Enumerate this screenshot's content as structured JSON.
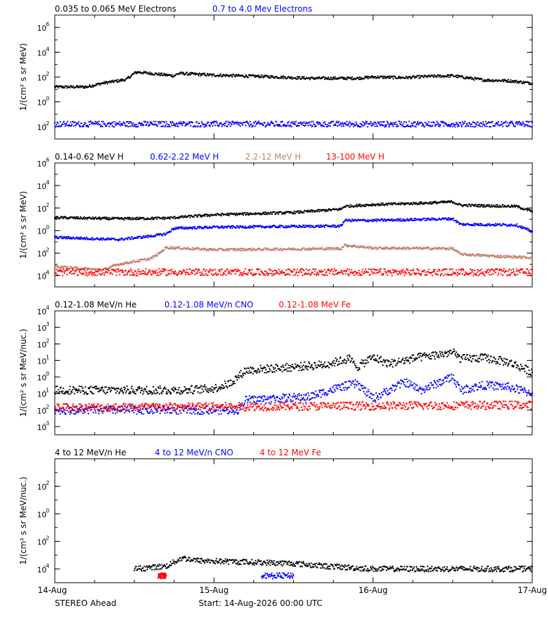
{
  "colors": {
    "black": "#000000",
    "blue": "#0000ff",
    "tan": "#c0806a",
    "red": "#ff0000"
  },
  "footer": {
    "spacecraft": "STEREO Ahead",
    "start": "Start: 14-Aug-2026 00:00 UTC",
    "x_ticks": [
      "14-Aug",
      "15-Aug",
      "16-Aug",
      "17-Aug"
    ]
  },
  "chart_data": [
    {
      "type": "scatter",
      "legend": [
        "0.035 to 0.065 MeV Electrons",
        "0.7 to 4.0 Mev Electrons"
      ],
      "ylabel": "1/(cm² s sr MeV)",
      "ylim_log10": [
        -3,
        7
      ],
      "y_tick_labels": [
        {
          "b": "10",
          "e": "-2",
          "v": -2
        },
        {
          "b": "10",
          "e": "0",
          "v": 0
        },
        {
          "b": "10",
          "e": "2",
          "v": 2
        },
        {
          "b": "10",
          "e": "4",
          "v": 4
        },
        {
          "b": "10",
          "e": "6",
          "v": 6
        }
      ],
      "x_unit": "days since 14-Aug 00:00",
      "xlim": [
        0,
        3
      ],
      "series": [
        {
          "name": "0.035 to 0.065 MeV Electrons",
          "color": "#000000",
          "x": [
            0,
            0.2,
            0.3,
            0.45,
            0.5,
            0.52,
            0.75,
            0.78,
            1.0,
            1.3,
            1.6,
            1.9,
            2.0,
            2.2,
            2.35,
            2.5,
            2.7,
            2.85,
            3.0
          ],
          "y": [
            1.2,
            1.2,
            1.5,
            1.8,
            2.3,
            2.4,
            2.1,
            2.3,
            2.15,
            2.05,
            1.9,
            1.9,
            2.0,
            1.95,
            2.05,
            2.1,
            1.75,
            1.7,
            1.5
          ]
        },
        {
          "name": "0.7 to 4.0 Mev Electrons",
          "color": "#0000ff",
          "x": [
            0,
            3
          ],
          "y": [
            -1.8,
            -1.8
          ]
        }
      ]
    },
    {
      "type": "scatter",
      "legend": [
        "0.14-0.62 MeV H",
        "0.62-2.22 MeV H",
        "2.2-12 MeV H",
        "13-100 MeV H"
      ],
      "ylabel": "1/(cm² s sr MeV)",
      "ylim_log10": [
        -5,
        6
      ],
      "y_tick_labels": [
        {
          "b": "10",
          "e": "-4",
          "v": -4
        },
        {
          "b": "10",
          "e": "-2",
          "v": -2
        },
        {
          "b": "10",
          "e": "0",
          "v": 0
        },
        {
          "b": "10",
          "e": "2",
          "v": 2
        },
        {
          "b": "10",
          "e": "4",
          "v": 4
        },
        {
          "b": "10",
          "e": "6",
          "v": 6
        }
      ],
      "x_unit": "days since 14-Aug 00:00",
      "xlim": [
        0,
        3
      ],
      "series": [
        {
          "name": "0.14-0.62 MeV H",
          "color": "#000000",
          "x": [
            0,
            0.4,
            0.7,
            1.0,
            1.5,
            1.8,
            1.82,
            2.0,
            2.35,
            2.5,
            2.55,
            2.9,
            3.0
          ],
          "y": [
            1.15,
            1.05,
            1.1,
            1.4,
            1.6,
            1.9,
            2.15,
            2.3,
            2.45,
            2.55,
            2.25,
            2.15,
            1.7
          ]
        },
        {
          "name": "0.62-2.22 MeV H",
          "color": "#0000ff",
          "x": [
            0,
            0.4,
            0.6,
            0.7,
            0.75,
            1.0,
            1.8,
            1.82,
            2.0,
            2.35,
            2.5,
            2.55,
            2.9,
            3.0
          ],
          "y": [
            -0.6,
            -0.8,
            -0.5,
            -0.3,
            0.2,
            0.3,
            0.4,
            0.9,
            0.9,
            1.0,
            1.05,
            0.55,
            0.5,
            -0.1
          ]
        },
        {
          "name": "2.2-12 MeV H",
          "color": "#c0806a",
          "x": [
            0,
            0.3,
            0.4,
            0.6,
            0.65,
            0.7,
            1.0,
            1.8,
            1.82,
            2.0,
            2.5,
            2.55,
            2.8,
            3.0
          ],
          "y": [
            -3.2,
            -3.5,
            -3.0,
            -2.5,
            -2.1,
            -1.5,
            -1.7,
            -1.6,
            -1.3,
            -1.55,
            -1.6,
            -2.1,
            -2.3,
            -2.4
          ]
        },
        {
          "name": "13-100 MeV H",
          "color": "#ff0000",
          "x": [
            0,
            3
          ],
          "y": [
            -3.7,
            -3.7
          ]
        }
      ]
    },
    {
      "type": "scatter",
      "legend": [
        "0.12-1.08 MeV/n He",
        "0.12-1.08 MeV/n CNO",
        "0.12-1.08 MeV Fe"
      ],
      "ylabel": "1/(cm² s sr MeV/nuc.)",
      "ylim_log10": [
        -3.5,
        4
      ],
      "y_tick_labels": [
        {
          "b": "10",
          "e": "-3",
          "v": -3
        },
        {
          "b": "10",
          "e": "-2",
          "v": -2
        },
        {
          "b": "10",
          "e": "-1",
          "v": -1
        },
        {
          "b": "10",
          "e": "0",
          "v": 0
        },
        {
          "b": "10",
          "e": "1",
          "v": 1
        },
        {
          "b": "10",
          "e": "2",
          "v": 2
        },
        {
          "b": "10",
          "e": "3",
          "v": 3
        },
        {
          "b": "10",
          "e": "4",
          "v": 4
        }
      ],
      "x_unit": "days since 14-Aug 00:00",
      "xlim": [
        0,
        3
      ],
      "series": [
        {
          "name": "0.12-1.08 MeV/n He",
          "color": "#000000",
          "x": [
            0,
            0.8,
            1.0,
            1.1,
            1.2,
            1.5,
            1.7,
            1.85,
            1.9,
            2.0,
            2.1,
            2.2,
            2.3,
            2.45,
            2.5,
            2.55,
            2.7,
            2.85,
            3.0
          ],
          "y": [
            -0.8,
            -0.8,
            -0.7,
            -0.4,
            0.4,
            0.6,
            0.75,
            1.1,
            0.6,
            1.2,
            0.8,
            1.0,
            1.2,
            1.4,
            1.5,
            1.1,
            1.15,
            0.9,
            0.3
          ]
        },
        {
          "name": "0.12-1.08 MeV/n CNO",
          "color": "#0000ff",
          "x": [
            0,
            1.15,
            1.2,
            1.6,
            1.8,
            1.9,
            2.0,
            2.2,
            2.3,
            2.5,
            2.55,
            2.7,
            2.85,
            3.0
          ],
          "y": [
            -2.0,
            -2.0,
            -1.4,
            -1.2,
            -0.6,
            -0.4,
            -1.3,
            -0.3,
            -0.8,
            0.0,
            -0.8,
            -0.5,
            -0.6,
            -1.0
          ]
        },
        {
          "name": "0.12-1.08 MeV Fe",
          "color": "#ff0000",
          "x": [
            0,
            3
          ],
          "y": [
            -1.85,
            -1.7
          ]
        }
      ]
    },
    {
      "type": "scatter",
      "legend": [
        "4 to 12 MeV/n He",
        "4 to 12 MeV/n CNO",
        "4 to 12 MeV Fe"
      ],
      "ylabel": "1/(cm² s sr MeV/nuc.)",
      "ylim_log10": [
        -5,
        4
      ],
      "y_tick_labels": [
        {
          "b": "10",
          "e": "-4",
          "v": -4
        },
        {
          "b": "10",
          "e": "-2",
          "v": -2
        },
        {
          "b": "10",
          "e": "0",
          "v": 0
        },
        {
          "b": "10",
          "e": "2",
          "v": 2
        }
      ],
      "x_unit": "days since 14-Aug 00:00",
      "xlim": [
        0,
        3
      ],
      "series": [
        {
          "name": "4 to 12 MeV/n He",
          "color": "#000000",
          "x": [
            0.5,
            0.7,
            0.8,
            0.9,
            1.2,
            1.5,
            1.7,
            2.0,
            2.3,
            2.6,
            3.0
          ],
          "y": [
            -4.0,
            -3.8,
            -3.2,
            -3.4,
            -3.5,
            -3.6,
            -3.8,
            -4.0,
            -4.0,
            -4.0,
            -4.0
          ]
        },
        {
          "name": "4 to 12 MeV/n CNO",
          "color": "#0000ff",
          "x": [
            1.3,
            1.5
          ],
          "y": [
            -4.5,
            -4.5
          ]
        },
        {
          "name": "4 to 12 MeV Fe",
          "color": "#ff0000",
          "x": [
            0.65,
            0.7
          ],
          "y": [
            -4.5,
            -4.5
          ]
        }
      ]
    }
  ]
}
